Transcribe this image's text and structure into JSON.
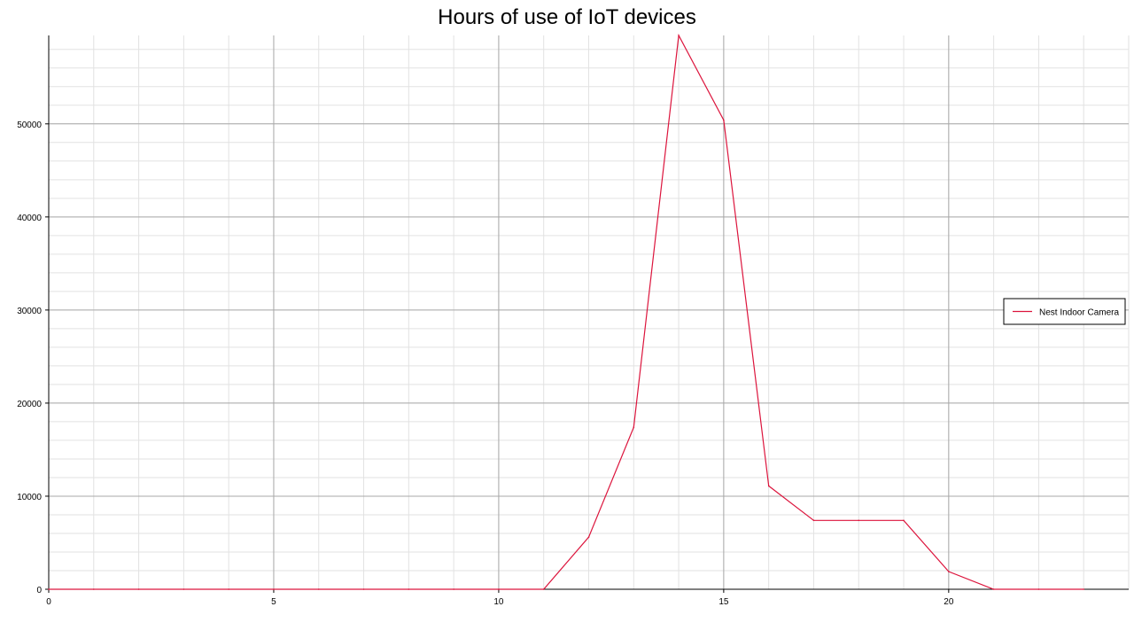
{
  "chart_data": {
    "type": "line",
    "title": "Hours of use of IoT devices",
    "xlabel": "",
    "ylabel": "",
    "xlim": [
      0,
      24
    ],
    "ylim": [
      0,
      59500
    ],
    "x_ticks": [
      0,
      5,
      10,
      15,
      20
    ],
    "y_ticks": [
      0,
      10000,
      20000,
      30000,
      40000,
      50000
    ],
    "x_minor_step": 1,
    "y_minor_step": 2000,
    "grid": true,
    "legend_position": "right",
    "series": [
      {
        "name": "Nest Indoor Camera",
        "color": "#dc143c",
        "x": [
          0,
          1,
          2,
          3,
          4,
          5,
          6,
          7,
          8,
          9,
          10,
          11,
          12,
          13,
          14,
          15,
          16,
          17,
          18,
          19,
          20,
          21,
          22,
          23
        ],
        "y": [
          0,
          0,
          0,
          0,
          0,
          0,
          0,
          0,
          0,
          0,
          0,
          0,
          5600,
          17400,
          59500,
          50400,
          11100,
          7400,
          7400,
          7400,
          1900,
          0,
          0,
          0
        ]
      }
    ]
  }
}
